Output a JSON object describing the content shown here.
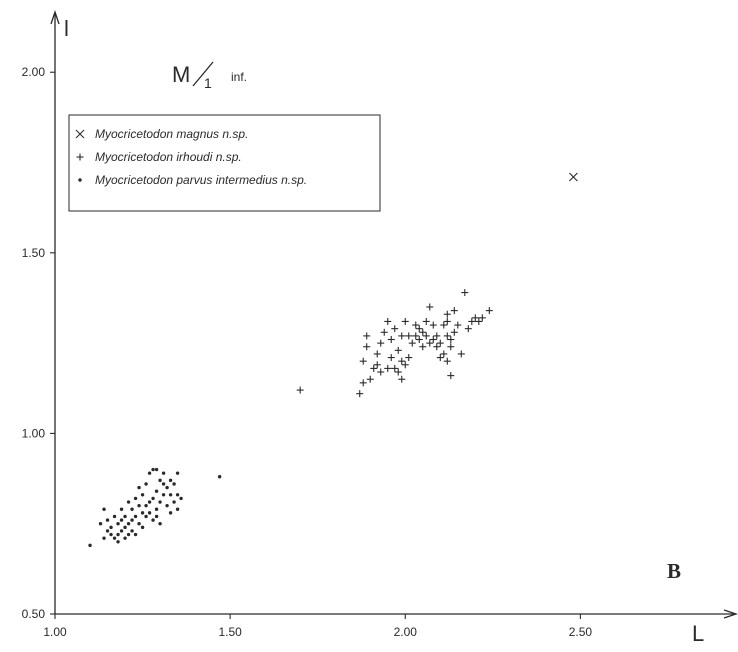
{
  "chart_data": {
    "type": "scatter",
    "title_main": "M",
    "title_sub": "1",
    "title_suffix": "inf.",
    "xlabel": "L",
    "ylabel": "l",
    "panel_label": "B",
    "xlim": [
      1.0,
      2.95
    ],
    "ylim": [
      0.5,
      2.2
    ],
    "xticks": [
      1.0,
      1.5,
      2.0,
      2.5
    ],
    "xtick_labels": [
      "1.00",
      "1.50",
      "2.00",
      "2.50"
    ],
    "yticks": [
      0.5,
      1.0,
      1.5,
      2.0
    ],
    "ytick_labels": [
      "0.50",
      "1.00",
      "1.50",
      "2.00"
    ],
    "grid": false,
    "legend_position": "top-left",
    "series": [
      {
        "name": "Myocricetodon magnus n.sp.",
        "marker": "x",
        "points": [
          [
            2.48,
            1.71
          ]
        ]
      },
      {
        "name": "Myocricetodon irhoudi n.sp.",
        "marker": "+",
        "points": [
          [
            1.7,
            1.12
          ],
          [
            1.87,
            1.11
          ],
          [
            1.88,
            1.14
          ],
          [
            1.88,
            1.2
          ],
          [
            1.89,
            1.24
          ],
          [
            1.89,
            1.27
          ],
          [
            1.9,
            1.15
          ],
          [
            1.91,
            1.18
          ],
          [
            1.92,
            1.19
          ],
          [
            1.92,
            1.22
          ],
          [
            1.93,
            1.17
          ],
          [
            1.93,
            1.25
          ],
          [
            1.94,
            1.28
          ],
          [
            1.95,
            1.18
          ],
          [
            1.95,
            1.31
          ],
          [
            1.96,
            1.21
          ],
          [
            1.96,
            1.26
          ],
          [
            1.97,
            1.18
          ],
          [
            1.97,
            1.29
          ],
          [
            1.98,
            1.17
          ],
          [
            1.98,
            1.23
          ],
          [
            1.99,
            1.15
          ],
          [
            1.99,
            1.2
          ],
          [
            1.99,
            1.27
          ],
          [
            2.0,
            1.19
          ],
          [
            2.0,
            1.31
          ],
          [
            2.01,
            1.21
          ],
          [
            2.01,
            1.27
          ],
          [
            2.02,
            1.25
          ],
          [
            2.03,
            1.27
          ],
          [
            2.03,
            1.3
          ],
          [
            2.04,
            1.26
          ],
          [
            2.04,
            1.29
          ],
          [
            2.05,
            1.24
          ],
          [
            2.05,
            1.28
          ],
          [
            2.06,
            1.27
          ],
          [
            2.06,
            1.31
          ],
          [
            2.07,
            1.25
          ],
          [
            2.07,
            1.35
          ],
          [
            2.08,
            1.3
          ],
          [
            2.09,
            1.24
          ],
          [
            2.09,
            1.27
          ],
          [
            2.1,
            1.25
          ],
          [
            2.1,
            1.21
          ],
          [
            2.11,
            1.3
          ],
          [
            2.11,
            1.22
          ],
          [
            2.12,
            1.33
          ],
          [
            2.12,
            1.27
          ],
          [
            2.12,
            1.2
          ],
          [
            2.13,
            1.16
          ],
          [
            2.13,
            1.24
          ],
          [
            2.14,
            1.28
          ],
          [
            2.14,
            1.34
          ],
          [
            2.15,
            1.3
          ],
          [
            2.16,
            1.22
          ],
          [
            2.17,
            1.39
          ],
          [
            2.18,
            1.29
          ],
          [
            2.19,
            1.31
          ],
          [
            2.2,
            1.32
          ],
          [
            2.21,
            1.31
          ],
          [
            2.22,
            1.32
          ],
          [
            2.24,
            1.34
          ],
          [
            2.12,
            1.31
          ],
          [
            2.13,
            1.26
          ],
          [
            2.08,
            1.26
          ]
        ]
      },
      {
        "name": "Myocricetodon parvus intermedius n.sp.",
        "marker": "dot",
        "points": [
          [
            1.1,
            0.69
          ],
          [
            1.13,
            0.75
          ],
          [
            1.14,
            0.71
          ],
          [
            1.14,
            0.79
          ],
          [
            1.15,
            0.73
          ],
          [
            1.15,
            0.76
          ],
          [
            1.16,
            0.72
          ],
          [
            1.16,
            0.74
          ],
          [
            1.17,
            0.71
          ],
          [
            1.17,
            0.77
          ],
          [
            1.18,
            0.72
          ],
          [
            1.18,
            0.75
          ],
          [
            1.19,
            0.73
          ],
          [
            1.19,
            0.76
          ],
          [
            1.19,
            0.79
          ],
          [
            1.2,
            0.71
          ],
          [
            1.2,
            0.74
          ],
          [
            1.2,
            0.77
          ],
          [
            1.21,
            0.72
          ],
          [
            1.21,
            0.75
          ],
          [
            1.21,
            0.81
          ],
          [
            1.22,
            0.73
          ],
          [
            1.22,
            0.76
          ],
          [
            1.22,
            0.79
          ],
          [
            1.23,
            0.77
          ],
          [
            1.23,
            0.82
          ],
          [
            1.24,
            0.75
          ],
          [
            1.24,
            0.8
          ],
          [
            1.24,
            0.85
          ],
          [
            1.25,
            0.78
          ],
          [
            1.25,
            0.74
          ],
          [
            1.25,
            0.83
          ],
          [
            1.26,
            0.8
          ],
          [
            1.26,
            0.86
          ],
          [
            1.27,
            0.78
          ],
          [
            1.27,
            0.81
          ],
          [
            1.27,
            0.89
          ],
          [
            1.28,
            0.76
          ],
          [
            1.28,
            0.82
          ],
          [
            1.28,
            0.9
          ],
          [
            1.29,
            0.79
          ],
          [
            1.29,
            0.84
          ],
          [
            1.29,
            0.9
          ],
          [
            1.3,
            0.75
          ],
          [
            1.3,
            0.81
          ],
          [
            1.3,
            0.87
          ],
          [
            1.31,
            0.83
          ],
          [
            1.31,
            0.89
          ],
          [
            1.32,
            0.8
          ],
          [
            1.32,
            0.85
          ],
          [
            1.33,
            0.78
          ],
          [
            1.33,
            0.83
          ],
          [
            1.33,
            0.87
          ],
          [
            1.34,
            0.81
          ],
          [
            1.34,
            0.86
          ],
          [
            1.35,
            0.79
          ],
          [
            1.35,
            0.83
          ],
          [
            1.35,
            0.89
          ],
          [
            1.36,
            0.82
          ],
          [
            1.47,
            0.88
          ],
          [
            1.18,
            0.7
          ],
          [
            1.23,
            0.72
          ],
          [
            1.26,
            0.77
          ],
          [
            1.31,
            0.86
          ],
          [
            1.29,
            0.77
          ]
        ]
      }
    ]
  }
}
